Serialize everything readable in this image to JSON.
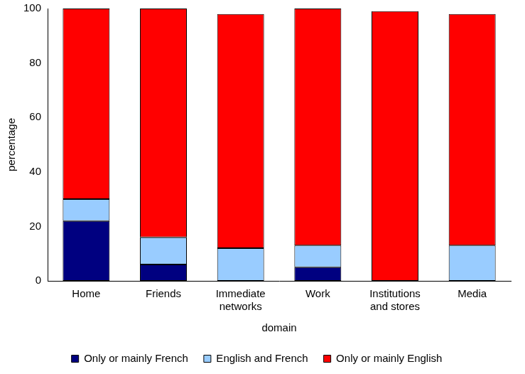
{
  "chart_data": {
    "type": "bar",
    "stacked": true,
    "grid": false,
    "legend": "bottom",
    "x_label": "domain",
    "y_label": "percentage",
    "categories": [
      "Home",
      "Friends",
      "Immediate networks",
      "Work",
      "Institutions and stores",
      "Media"
    ],
    "series": [
      {
        "name": "Only or mainly French",
        "color": "#000080",
        "values": [
          22,
          6,
          0,
          5,
          0,
          0
        ]
      },
      {
        "name": "English and French",
        "color": "#99ccff",
        "values": [
          8,
          10,
          12,
          8,
          0,
          13
        ]
      },
      {
        "name": "Only or mainly English",
        "color": "#ff0000",
        "values": [
          70,
          84,
          86,
          87,
          99,
          85
        ]
      }
    ],
    "ylim": [
      0,
      100
    ],
    "yticks": [
      0,
      20,
      40,
      60,
      80,
      100
    ]
  }
}
